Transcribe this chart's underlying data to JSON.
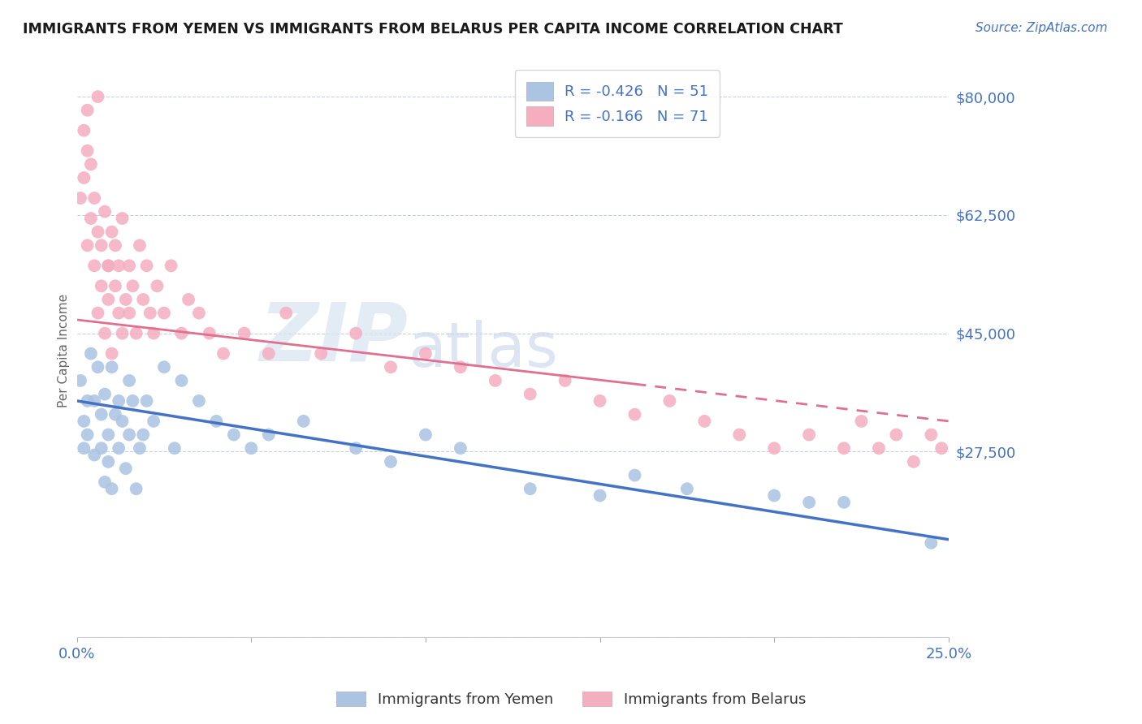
{
  "title": "IMMIGRANTS FROM YEMEN VS IMMIGRANTS FROM BELARUS PER CAPITA INCOME CORRELATION CHART",
  "source": "Source: ZipAtlas.com",
  "ylabel": "Per Capita Income",
  "xlim": [
    0.0,
    0.25
  ],
  "ylim": [
    0,
    85000
  ],
  "yticks": [
    0,
    27500,
    45000,
    62500,
    80000
  ],
  "ytick_labels": [
    "",
    "$27,500",
    "$45,000",
    "$62,500",
    "$80,000"
  ],
  "xticks": [
    0.0,
    0.05,
    0.1,
    0.15,
    0.2,
    0.25
  ],
  "xtick_labels": [
    "0.0%",
    "",
    "",
    "",
    "",
    "25.0%"
  ],
  "legend_label_yemen": "Immigrants from Yemen",
  "legend_label_belarus": "Immigrants from Belarus",
  "legend_r_yemen": "-0.426",
  "legend_n_yemen": "51",
  "legend_r_belarus": "-0.166",
  "legend_n_belarus": "71",
  "color_yemen": "#aac4e2",
  "color_belarus": "#f5adc0",
  "line_color_yemen": "#4472c4",
  "line_color_belarus": "#e07090",
  "watermark_zip": "ZIP",
  "watermark_atlas": "atlas",
  "watermark_color_zip": "#d0ddf0",
  "watermark_color_atlas": "#c0cce8",
  "title_color": "#1a1a1a",
  "tick_color": "#4472c4",
  "grid_color": "#c8d0dc",
  "yemen_x": [
    0.001,
    0.002,
    0.002,
    0.003,
    0.003,
    0.004,
    0.005,
    0.005,
    0.006,
    0.007,
    0.007,
    0.008,
    0.008,
    0.009,
    0.009,
    0.01,
    0.01,
    0.011,
    0.012,
    0.012,
    0.013,
    0.014,
    0.015,
    0.015,
    0.016,
    0.017,
    0.018,
    0.019,
    0.02,
    0.022,
    0.025,
    0.028,
    0.03,
    0.035,
    0.04,
    0.045,
    0.05,
    0.055,
    0.065,
    0.08,
    0.09,
    0.1,
    0.11,
    0.13,
    0.15,
    0.16,
    0.175,
    0.2,
    0.21,
    0.22,
    0.245
  ],
  "yemen_y": [
    38000,
    32000,
    28000,
    35000,
    30000,
    42000,
    27000,
    35000,
    40000,
    33000,
    28000,
    36000,
    23000,
    30000,
    26000,
    40000,
    22000,
    33000,
    28000,
    35000,
    32000,
    25000,
    38000,
    30000,
    35000,
    22000,
    28000,
    30000,
    35000,
    32000,
    40000,
    28000,
    38000,
    35000,
    32000,
    30000,
    28000,
    30000,
    32000,
    28000,
    26000,
    30000,
    28000,
    22000,
    21000,
    24000,
    22000,
    21000,
    20000,
    20000,
    14000
  ],
  "belarus_x": [
    0.001,
    0.002,
    0.002,
    0.003,
    0.003,
    0.004,
    0.004,
    0.005,
    0.005,
    0.006,
    0.006,
    0.007,
    0.007,
    0.008,
    0.008,
    0.009,
    0.009,
    0.01,
    0.01,
    0.011,
    0.011,
    0.012,
    0.012,
    0.013,
    0.013,
    0.014,
    0.015,
    0.015,
    0.016,
    0.017,
    0.018,
    0.019,
    0.02,
    0.021,
    0.022,
    0.023,
    0.025,
    0.027,
    0.03,
    0.032,
    0.035,
    0.038,
    0.042,
    0.048,
    0.055,
    0.06,
    0.07,
    0.08,
    0.09,
    0.1,
    0.11,
    0.12,
    0.13,
    0.14,
    0.15,
    0.16,
    0.17,
    0.18,
    0.19,
    0.2,
    0.21,
    0.22,
    0.225,
    0.23,
    0.235,
    0.24,
    0.245,
    0.248,
    0.003,
    0.006,
    0.009
  ],
  "belarus_y": [
    65000,
    75000,
    68000,
    72000,
    58000,
    62000,
    70000,
    65000,
    55000,
    60000,
    48000,
    58000,
    52000,
    63000,
    45000,
    55000,
    50000,
    60000,
    42000,
    58000,
    52000,
    55000,
    48000,
    62000,
    45000,
    50000,
    55000,
    48000,
    52000,
    45000,
    58000,
    50000,
    55000,
    48000,
    45000,
    52000,
    48000,
    55000,
    45000,
    50000,
    48000,
    45000,
    42000,
    45000,
    42000,
    48000,
    42000,
    45000,
    40000,
    42000,
    40000,
    38000,
    36000,
    38000,
    35000,
    33000,
    35000,
    32000,
    30000,
    28000,
    30000,
    28000,
    32000,
    28000,
    30000,
    26000,
    30000,
    28000,
    78000,
    80000,
    55000
  ],
  "trend_yemen_x0": 0.0,
  "trend_yemen_x1": 0.25,
  "trend_yemen_y0": 35000,
  "trend_yemen_y1": 14500,
  "trend_belarus_solid_x0": 0.0,
  "trend_belarus_solid_x1": 0.16,
  "trend_belarus_y0": 47000,
  "trend_belarus_y1": 37500,
  "trend_belarus_dash_x0": 0.16,
  "trend_belarus_dash_x1": 0.25,
  "trend_belarus_dash_y0": 37500,
  "trend_belarus_dash_y1": 32000
}
